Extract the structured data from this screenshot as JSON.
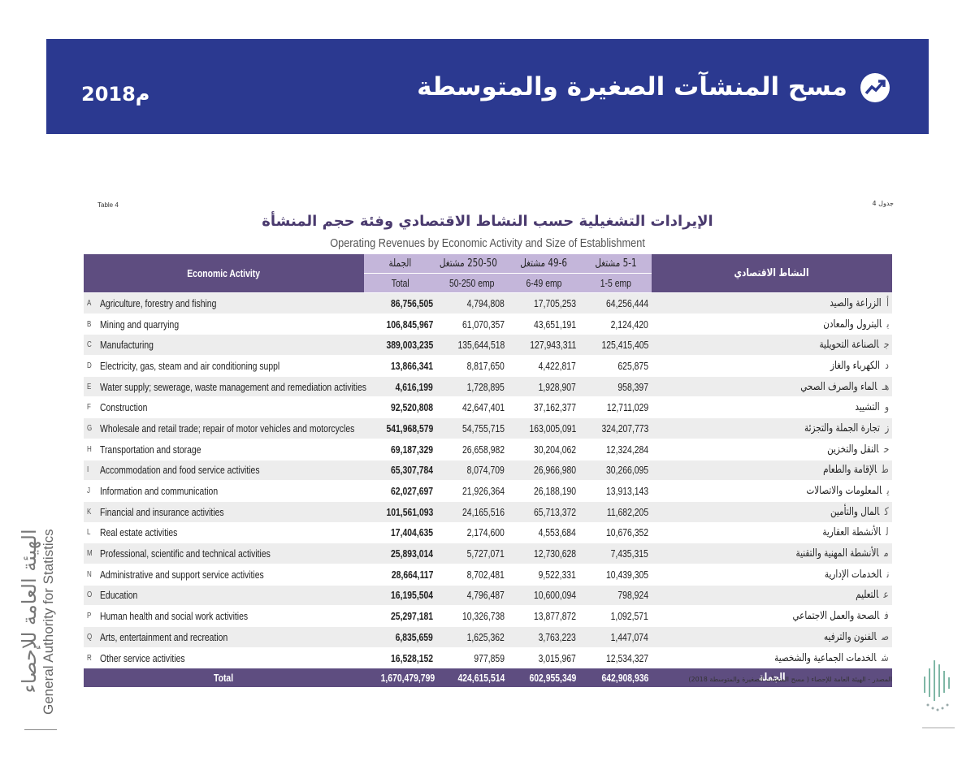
{
  "header": {
    "title": "مسح المنشآت الصغيرة والمتوسطة",
    "year": "2018م"
  },
  "table": {
    "label_en": "Table 4",
    "label_ar": "جدول 4",
    "title_ar": "الإيرادات التشغيلية حسب النشاط الاقتصادي وفئة حجم المنشأة",
    "title_en": "Operating Revenues by Economic Activity and Size of Establishment",
    "header": {
      "activity_en": "Economic Activity",
      "activity_ar": "النشاط الاقتصادي",
      "columns_ar": [
        "الجملة",
        "250-50 مشتغل",
        "49-6 مشتغل",
        "5-1 مشتغل"
      ],
      "columns_en": [
        "Total",
        "50-250 emp",
        "6-49 emp",
        "1-5 emp"
      ]
    },
    "rows": [
      [
        "A",
        "Agriculture, forestry and fishing",
        "86,756,505",
        "4,794,808",
        "17,705,253",
        "64,256,444",
        "الزراعة والصيد",
        "أ"
      ],
      [
        "B",
        "Mining and quarrying",
        "106,845,967",
        "61,070,357",
        "43,651,191",
        "2,124,420",
        "البترول والمعادن",
        "ب"
      ],
      [
        "C",
        "Manufacturing",
        "389,003,235",
        "135,644,518",
        "127,943,311",
        "125,415,405",
        "الصناعة التحويلية",
        "ج"
      ],
      [
        "D",
        "Electricity, gas, steam and air conditioning suppl",
        "13,866,341",
        "8,817,650",
        "4,422,817",
        "625,875",
        "الكهرباء والغاز",
        "د"
      ],
      [
        "E",
        "Water supply; sewerage, waste management and remediation activities",
        "4,616,199",
        "1,728,895",
        "1,928,907",
        "958,397",
        "الماء والصرف الصحي",
        "هـ"
      ],
      [
        "F",
        "Construction",
        "92,520,808",
        "42,647,401",
        "37,162,377",
        "12,711,029",
        "التشييد",
        "و"
      ],
      [
        "G",
        "Wholesale and retail trade; repair of motor vehicles and motorcycles",
        "541,968,579",
        "54,755,715",
        "163,005,091",
        "324,207,773",
        "تجارة الجملة والتجزئة",
        "ز"
      ],
      [
        "H",
        "Transportation and storage",
        "69,187,329",
        "26,658,982",
        "30,204,062",
        "12,324,284",
        "النقل والتخزين",
        "ح"
      ],
      [
        "I",
        "Accommodation and food service activities",
        "65,307,784",
        "8,074,709",
        "26,966,980",
        "30,266,095",
        "الإقامة والطعام",
        "ط"
      ],
      [
        "J",
        "Information and communication",
        "62,027,697",
        "21,926,364",
        "26,188,190",
        "13,913,143",
        "المعلومات والاتصالات",
        "ي"
      ],
      [
        "K",
        "Financial and insurance activities",
        "101,561,093",
        "24,165,516",
        "65,713,372",
        "11,682,205",
        "المال والتأمين",
        "ك"
      ],
      [
        "L",
        "Real estate activities",
        "17,404,635",
        "2,174,600",
        "4,553,684",
        "10,676,352",
        "الأنشطة العقارية",
        "ل"
      ],
      [
        "M",
        "Professional, scientific and technical activities",
        "25,893,014",
        "5,727,071",
        "12,730,628",
        "7,435,315",
        "الأنشطة المهنية والتقنية",
        "م"
      ],
      [
        "N",
        "Administrative and support service activities",
        "28,664,117",
        "8,702,481",
        "9,522,331",
        "10,439,305",
        "الخدمات الإدارية",
        "ن"
      ],
      [
        "O",
        "Education",
        "16,195,504",
        "4,796,487",
        "10,600,094",
        "798,924",
        "التعليم",
        "ع"
      ],
      [
        "P",
        "Human health and social work activities",
        "25,297,181",
        "10,326,738",
        "13,877,872",
        "1,092,571",
        "الصحة والعمل الاجتماعي",
        "ف"
      ],
      [
        "Q",
        "Arts, entertainment and recreation",
        "6,835,659",
        "1,625,362",
        "3,763,223",
        "1,447,074",
        "الفنون والترفيه",
        "ص"
      ],
      [
        "R",
        "Other service activities",
        "16,528,152",
        "977,859",
        "3,015,967",
        "12,534,327",
        "الخدمات الجماعية والشخصية",
        "ش"
      ]
    ],
    "total": [
      "Total",
      "1,670,479,799",
      "424,615,514",
      "602,955,349",
      "642,908,936",
      "الجملة"
    ],
    "source": "المصدر - الهيئة العامة للإحصاء ( مسح المنشآت الصغيرة والمتوسطة 2018)"
  },
  "sidebar": {
    "name_ar": "الهيئة العامة للإحصاء",
    "name_en": "General Authority for Statistics"
  }
}
